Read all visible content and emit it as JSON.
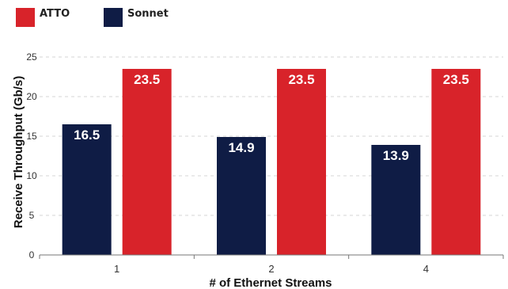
{
  "chart_data": {
    "type": "bar",
    "xlabel": "# of Ethernet Streams",
    "ylabel": "Receive Throughput (Gb/s)",
    "categories": [
      "1",
      "2",
      "4"
    ],
    "ylim": [
      0,
      25
    ],
    "yticks": [
      "0",
      "5",
      "10",
      "15",
      "20",
      "25"
    ],
    "grid": true,
    "legend_position": "top-left",
    "series": [
      {
        "name": "Sonnet",
        "color": "#0f1c45",
        "values": [
          16.5,
          14.9,
          13.9
        ],
        "labels": [
          "16.5",
          "14.9",
          "13.9"
        ]
      },
      {
        "name": "ATTO",
        "color": "#d8232a",
        "values": [
          23.5,
          23.5,
          23.5
        ],
        "labels": [
          "23.5",
          "23.5",
          "23.5"
        ]
      }
    ],
    "legend": [
      {
        "name": "ATTO",
        "color": "#d8232a"
      },
      {
        "name": "Sonnet",
        "color": "#0f1c45"
      }
    ]
  }
}
